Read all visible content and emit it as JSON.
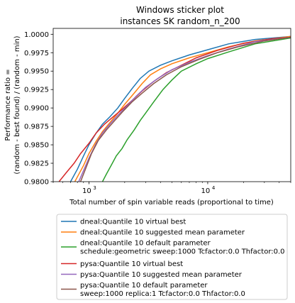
{
  "chart_data": {
    "type": "line",
    "title": "Windows sticker plot",
    "subtitle": "instances SK random_n_200",
    "xlabel": "Total number of spin variable reads (proportional to time)",
    "ylabel_line1": "Performance ratio =",
    "ylabel_line2": "(random - best found) / (random - min)",
    "xscale": "log",
    "xlim": [
      500,
      50000
    ],
    "ylim": [
      0.98,
      1.0008
    ],
    "x_ticks": [
      {
        "value": 1000,
        "label": "10",
        "exp": "3"
      },
      {
        "value": 10000,
        "label": "10",
        "exp": "4"
      }
    ],
    "y_ticks": [
      {
        "value": 0.98,
        "label": "0.9800"
      },
      {
        "value": 0.9825,
        "label": "0.9825"
      },
      {
        "value": 0.985,
        "label": "0.9850"
      },
      {
        "value": 0.9875,
        "label": "0.9875"
      },
      {
        "value": 0.99,
        "label": "0.9900"
      },
      {
        "value": 0.9925,
        "label": "0.9925"
      },
      {
        "value": 0.995,
        "label": "0.9950"
      },
      {
        "value": 0.9975,
        "label": "0.9975"
      },
      {
        "value": 1.0,
        "label": "1.0000"
      }
    ],
    "grid": false,
    "legend_position": "below plot",
    "series": [
      {
        "name": "dneal:Quantile 10 virtual best",
        "color": "#1f77b4",
        "points": [
          [
            700,
            0.98
          ],
          [
            800,
            0.9817
          ],
          [
            900,
            0.9835
          ],
          [
            1000,
            0.985
          ],
          [
            1150,
            0.9866
          ],
          [
            1300,
            0.9878
          ],
          [
            1500,
            0.9888
          ],
          [
            1750,
            0.99
          ],
          [
            2000,
            0.9913
          ],
          [
            2300,
            0.9926
          ],
          [
            2700,
            0.994
          ],
          [
            3200,
            0.995
          ],
          [
            4000,
            0.9958
          ],
          [
            5000,
            0.9964
          ],
          [
            7000,
            0.9972
          ],
          [
            10000,
            0.9979
          ],
          [
            15000,
            0.9987
          ],
          [
            25000,
            0.9993
          ],
          [
            50000,
            0.9997
          ]
        ]
      },
      {
        "name": "dneal:Quantile 10 suggested mean parameter",
        "color": "#ff7f0e",
        "points": [
          [
            760,
            0.98
          ],
          [
            900,
            0.9822
          ],
          [
            1000,
            0.9838
          ],
          [
            1150,
            0.9855
          ],
          [
            1300,
            0.9868
          ],
          [
            1500,
            0.988
          ],
          [
            1750,
            0.9893
          ],
          [
            2000,
            0.9905
          ],
          [
            2400,
            0.992
          ],
          [
            2800,
            0.9933
          ],
          [
            3300,
            0.9945
          ],
          [
            4000,
            0.9953
          ],
          [
            5000,
            0.996
          ],
          [
            7000,
            0.9968
          ],
          [
            10000,
            0.9975
          ],
          [
            15000,
            0.9983
          ],
          [
            25000,
            0.9991
          ],
          [
            50000,
            0.9997
          ]
        ]
      },
      {
        "name_line1": "dneal:Quantile 10 default parameter",
        "name_line2": "schedule:geometric sweep:1000 Tcfactor:0.0 Thfactor:0.0",
        "color": "#2ca02c",
        "points": [
          [
            1300,
            0.98
          ],
          [
            1400,
            0.981
          ],
          [
            1550,
            0.9823
          ],
          [
            1700,
            0.9835
          ],
          [
            1900,
            0.9845
          ],
          [
            2100,
            0.9857
          ],
          [
            2400,
            0.987
          ],
          [
            2700,
            0.9883
          ],
          [
            3000,
            0.9893
          ],
          [
            3500,
            0.9908
          ],
          [
            4200,
            0.9925
          ],
          [
            5000,
            0.9938
          ],
          [
            6000,
            0.995
          ],
          [
            8000,
            0.996
          ],
          [
            10000,
            0.9967
          ],
          [
            15000,
            0.9976
          ],
          [
            25000,
            0.9987
          ],
          [
            50000,
            0.9995
          ]
        ]
      },
      {
        "name": "pysa:Quantile 10 virtual best",
        "color": "#d62728",
        "points": [
          [
            560,
            0.98
          ],
          [
            650,
            0.9813
          ],
          [
            750,
            0.9825
          ],
          [
            850,
            0.9838
          ],
          [
            1000,
            0.9852
          ],
          [
            1150,
            0.9866
          ],
          [
            1350,
            0.9878
          ],
          [
            1600,
            0.9888
          ],
          [
            1900,
            0.9898
          ],
          [
            2300,
            0.991
          ],
          [
            2800,
            0.9923
          ],
          [
            3500,
            0.9936
          ],
          [
            4500,
            0.9948
          ],
          [
            6000,
            0.9958
          ],
          [
            8000,
            0.9968
          ],
          [
            12000,
            0.9978
          ],
          [
            20000,
            0.9988
          ],
          [
            35000,
            0.9994
          ],
          [
            50000,
            0.9996
          ]
        ]
      },
      {
        "name": "pysa:Quantile 10 suggested mean parameter",
        "color": "#9467bd",
        "points": [
          [
            820,
            0.98
          ],
          [
            900,
            0.9815
          ],
          [
            1000,
            0.9832
          ],
          [
            1150,
            0.9852
          ],
          [
            1300,
            0.9866
          ],
          [
            1500,
            0.9878
          ],
          [
            1750,
            0.989
          ],
          [
            2100,
            0.9903
          ],
          [
            2500,
            0.9916
          ],
          [
            3000,
            0.9928
          ],
          [
            3800,
            0.994
          ],
          [
            5000,
            0.9952
          ],
          [
            7000,
            0.9962
          ],
          [
            10000,
            0.9971
          ],
          [
            15000,
            0.998
          ],
          [
            25000,
            0.999
          ],
          [
            50000,
            0.9996
          ]
        ]
      },
      {
        "name_line1": "pysa:Quantile 10 default parameter",
        "name_line2": "sweep:1000 replica:1 Tcfactor:0.0 Thfactor:0.0",
        "color": "#8c564b",
        "points": [
          [
            850,
            0.98
          ],
          [
            940,
            0.9818
          ],
          [
            1050,
            0.9838
          ],
          [
            1200,
            0.9856
          ],
          [
            1400,
            0.987
          ],
          [
            1650,
            0.9883
          ],
          [
            1950,
            0.9896
          ],
          [
            2300,
            0.9908
          ],
          [
            2800,
            0.992
          ],
          [
            3500,
            0.9933
          ],
          [
            4500,
            0.9945
          ],
          [
            6000,
            0.9956
          ],
          [
            8500,
            0.9966
          ],
          [
            12000,
            0.9975
          ],
          [
            18000,
            0.9983
          ],
          [
            30000,
            0.9991
          ],
          [
            50000,
            0.9996
          ]
        ]
      }
    ]
  }
}
